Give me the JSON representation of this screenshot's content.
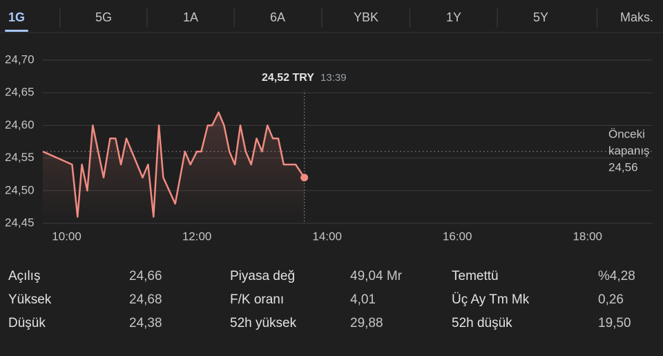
{
  "tabs": {
    "items": [
      "1G",
      "5G",
      "1A",
      "6A",
      "YBK",
      "1Y",
      "5Y",
      "Maks."
    ],
    "selected": 0
  },
  "chart_data": {
    "type": "line",
    "x": [
      "09:38",
      "10:05",
      "10:10",
      "10:14",
      "10:19",
      "10:24",
      "10:34",
      "10:40",
      "10:45",
      "10:50",
      "10:55",
      "11:10",
      "11:15",
      "11:20",
      "11:25",
      "11:29",
      "11:40",
      "11:49",
      "11:54",
      "12:00",
      "12:04",
      "12:10",
      "12:14",
      "12:20",
      "12:25",
      "12:30",
      "12:35",
      "12:40",
      "12:45",
      "12:50",
      "12:55",
      "13:00",
      "13:05",
      "13:10",
      "13:15",
      "13:20",
      "13:31",
      "13:39"
    ],
    "values": [
      24.56,
      24.54,
      24.46,
      24.54,
      24.5,
      24.6,
      24.52,
      24.58,
      24.58,
      24.54,
      24.58,
      24.52,
      24.54,
      24.46,
      24.6,
      24.52,
      24.48,
      24.56,
      24.54,
      24.56,
      24.56,
      24.6,
      24.6,
      24.62,
      24.6,
      24.56,
      24.54,
      24.6,
      24.56,
      24.54,
      24.58,
      24.56,
      24.6,
      24.58,
      24.58,
      24.54,
      24.54,
      24.52
    ],
    "color": "#f28b82",
    "xlim": [
      "09:38",
      "19:00"
    ],
    "xticks": [
      "10:00",
      "12:00",
      "14:00",
      "16:00",
      "18:00"
    ],
    "ylim": [
      24.45,
      24.7
    ],
    "yticks": [
      {
        "value": 24.45,
        "label": "24,45"
      },
      {
        "value": 24.5,
        "label": "24,50"
      },
      {
        "value": 24.55,
        "label": "24,55"
      },
      {
        "value": 24.6,
        "label": "24,60"
      },
      {
        "value": 24.65,
        "label": "24,65"
      },
      {
        "value": 24.7,
        "label": "24,70"
      }
    ],
    "grid": true,
    "previous_close": {
      "value": 24.56,
      "label": "24,56"
    },
    "previous_close_title": [
      "Önceki",
      "kapanış"
    ],
    "tooltip": {
      "price": "24,52 TRY",
      "time": "13:39"
    }
  },
  "stats": [
    [
      [
        "Açılış",
        "24,66"
      ],
      [
        "Piyasa değ",
        "49,04 Mr"
      ],
      [
        "Temettü",
        "%4,28"
      ]
    ],
    [
      [
        "Yüksek",
        "24,68"
      ],
      [
        "F/K oranı",
        "4,01"
      ],
      [
        "Üç Ay Tm Mk",
        "0,26"
      ]
    ],
    [
      [
        "Düşük",
        "24,38"
      ],
      [
        "52h yüksek",
        "29,88"
      ],
      [
        "52h düşük",
        "19,50"
      ]
    ]
  ]
}
